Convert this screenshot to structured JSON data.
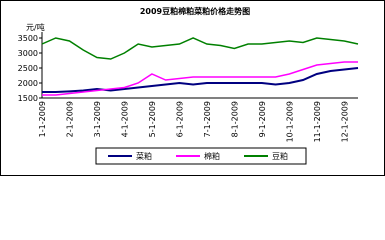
{
  "chart_data": {
    "type": "line",
    "title": "2009豆粕棉粕菜粕价格走势图",
    "y_unit": "元/吨",
    "categories": [
      "1-1-2009",
      null,
      "2-1-2009",
      null,
      "3-1-2009",
      null,
      "4-1-2009",
      null,
      "5-1-2009",
      null,
      "6-1-2009",
      null,
      "7-1-2009",
      null,
      "8-1-2009",
      null,
      "9-1-2009",
      null,
      "10-1-2009",
      null,
      "11-1-2009",
      null,
      "12-1-2009",
      null
    ],
    "series": [
      {
        "name": "菜粕",
        "color": "#000080",
        "values": [
          1700,
          1700,
          1720,
          1750,
          1800,
          1750,
          1800,
          1850,
          1900,
          1950,
          2000,
          1950,
          2000,
          2000,
          2000,
          2000,
          2000,
          1950,
          2000,
          2100,
          2300,
          2400,
          2450,
          2500
        ]
      },
      {
        "name": "棉粕",
        "color": "#ff00ff",
        "values": [
          1600,
          1600,
          1650,
          1700,
          1750,
          1800,
          1850,
          2000,
          2300,
          2100,
          2150,
          2200,
          2200,
          2200,
          2200,
          2200,
          2200,
          2200,
          2300,
          2450,
          2600,
          2650,
          2700,
          2700
        ]
      },
      {
        "name": "豆粕",
        "color": "#008000",
        "values": [
          3300,
          3500,
          3400,
          3100,
          2850,
          2800,
          3000,
          3300,
          3200,
          3250,
          3300,
          3500,
          3300,
          3250,
          3150,
          3300,
          3300,
          3350,
          3400,
          3350,
          3500,
          3450,
          3400,
          3300
        ]
      }
    ],
    "ylim": [
      1500,
      3500
    ],
    "yticks": [
      1500,
      2000,
      2500,
      3000,
      3500
    ]
  }
}
